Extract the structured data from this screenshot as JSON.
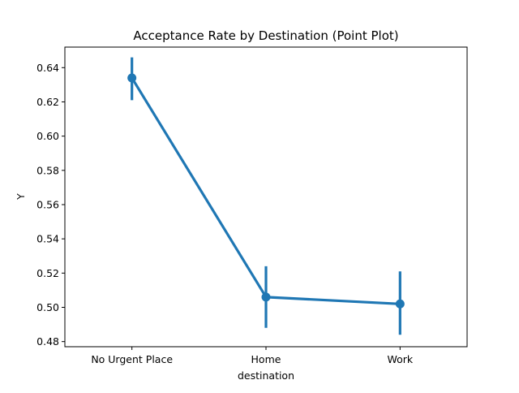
{
  "chart_data": {
    "type": "line",
    "title": "Acceptance Rate by Destination (Point Plot)",
    "xlabel": "destination",
    "ylabel": "Y",
    "categories": [
      "No Urgent Place",
      "Home",
      "Work"
    ],
    "series": [
      {
        "values": [
          0.634,
          0.506,
          0.502
        ],
        "ci_low": [
          0.621,
          0.488,
          0.484
        ],
        "ci_high": [
          0.646,
          0.524,
          0.521
        ],
        "color": "#1f77b4"
      }
    ],
    "ylim": [
      0.477,
      0.652
    ],
    "yticks": [
      0.48,
      0.5,
      0.52,
      0.54,
      0.56,
      0.58,
      0.6,
      0.62,
      0.64
    ],
    "ytick_labels": [
      "0.48",
      "0.50",
      "0.52",
      "0.54",
      "0.56",
      "0.58",
      "0.60",
      "0.62",
      "0.64"
    ],
    "grid": false,
    "legend": "none"
  }
}
